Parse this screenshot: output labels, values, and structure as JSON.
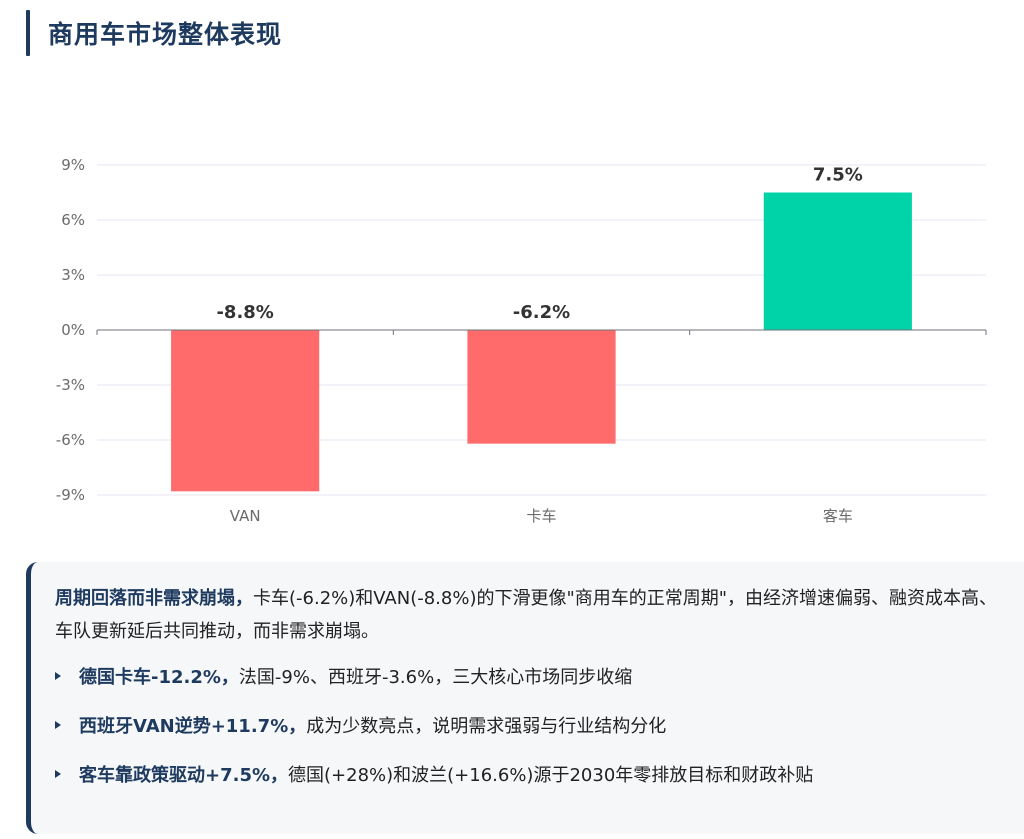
{
  "page": {
    "title": "商用车市场整体表现"
  },
  "chart_data": {
    "type": "bar",
    "title": "",
    "categories": [
      "VAN",
      "卡车",
      "客车"
    ],
    "values": [
      -8.8,
      -6.2,
      7.5
    ],
    "value_labels": [
      "-8.8%",
      "-6.2%",
      "7.5%"
    ],
    "ylim": [
      -9,
      9
    ],
    "yticks": [
      9,
      6,
      3,
      0,
      -3,
      -6,
      -9
    ],
    "ytick_labels": [
      "9%",
      "6%",
      "3%",
      "0%",
      "-3%",
      "-6%",
      "-9%"
    ],
    "xlabel": "",
    "ylabel": "",
    "grid": true,
    "legend": "none",
    "colors": {
      "negative": "#ff6b6b",
      "positive": "#00d3a7",
      "grid": "#e6e6f2",
      "axis": "#6e7079"
    }
  },
  "summary": {
    "intro_bold": "周期回落而非需求崩塌，",
    "intro_text": "卡车(-6.2%)和VAN(-8.8%)的下滑更像\"商用车的正常周期\"，由经济增速偏弱、融资成本高、车队更新延后共同推动，而非需求崩塌。",
    "points": [
      {
        "bold": "德国卡车-12.2%，",
        "text": "法国-9%、西班牙-3.6%，三大核心市场同步收缩"
      },
      {
        "bold": "西班牙VAN逆势+11.7%，",
        "text": "成为少数亮点，说明需求强弱与行业结构分化"
      },
      {
        "bold": "客车靠政策驱动+7.5%，",
        "text": "德国(+28%)和波兰(+16.6%)源于2030年零排放目标和财政补贴"
      }
    ]
  }
}
